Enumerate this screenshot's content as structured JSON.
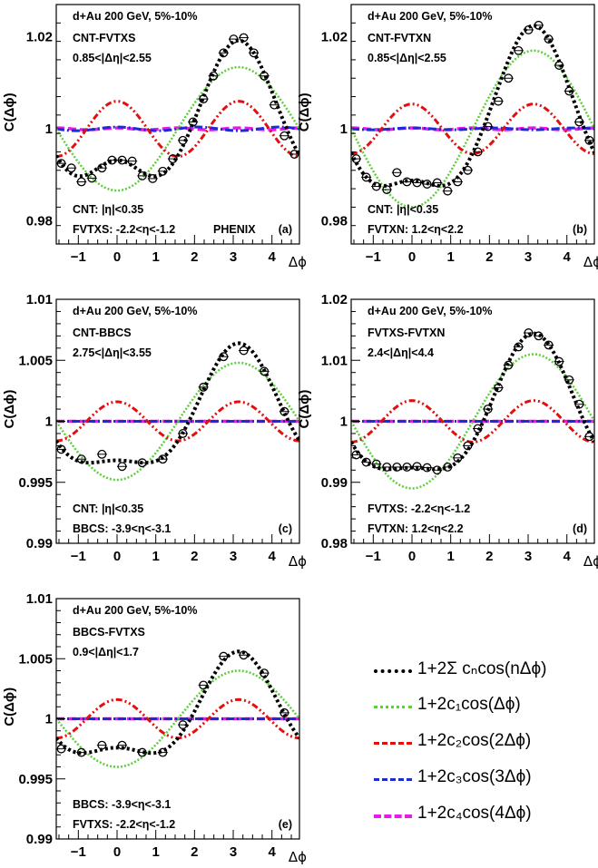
{
  "colors": {
    "fourier": "#000000",
    "c1": "#5ccf3b",
    "c2": "#e01010",
    "c3": "#1c2ad8",
    "c4": "#e81ae8"
  },
  "legend": [
    {
      "series": "fourier",
      "label": "1+2Σ cₙcos(nΔϕ)"
    },
    {
      "series": "c1",
      "label": "1+2c₁cos(Δϕ)"
    },
    {
      "series": "c2",
      "label": "1+2c₂cos(2Δϕ)"
    },
    {
      "series": "c3",
      "label": "1+2c₃cos(3Δϕ)"
    },
    {
      "series": "c4",
      "label": "1+2c₄cos(4Δϕ)"
    }
  ],
  "chart_data": [
    {
      "type": "scatter",
      "panel_tag": "(a)",
      "header": "d+Au 200 GeV, 5%-10%",
      "pair": "CNT-FVTXS",
      "eta_gap": "0.85<|Δη|<2.55",
      "notes": [
        "CNT: |η|<0.35",
        "FVTXS: -2.2<η<-1.2"
      ],
      "experiment": "PHENIX",
      "xlabel": "Δϕ",
      "ylabel": "C(Δϕ)",
      "xlim": [
        -1.57,
        4.71
      ],
      "ylim": [
        0.975,
        1.027
      ],
      "xticks": [
        "−1",
        "0",
        "1",
        "2",
        "3",
        "4"
      ],
      "yticks": [
        "0.98",
        "1",
        "1.02"
      ],
      "ytick_values": [
        0.98,
        1.0,
        1.02
      ],
      "coefficients": {
        "c1": 0.0067,
        "c2": 0.003,
        "c3": 0.0002,
        "c4": 0.0001
      },
      "x": [
        -1.44,
        -1.18,
        -0.92,
        -0.65,
        -0.39,
        -0.13,
        0.13,
        0.39,
        0.65,
        0.92,
        1.18,
        1.44,
        1.7,
        1.96,
        2.23,
        2.49,
        2.75,
        3.01,
        3.27,
        3.53,
        3.8,
        4.06,
        4.32,
        4.58
      ],
      "y": [
        0.9925,
        0.9915,
        0.9885,
        0.9893,
        0.9915,
        0.9932,
        0.9932,
        0.993,
        0.9898,
        0.9892,
        0.9908,
        0.9935,
        0.9975,
        1.0015,
        1.0065,
        1.0115,
        1.0165,
        1.0195,
        1.0198,
        1.0165,
        1.0115,
        1.0052,
        0.9985,
        0.9945
      ]
    },
    {
      "type": "scatter",
      "panel_tag": "(b)",
      "header": "d+Au 200 GeV, 5%-10%",
      "pair": "CNT-FVTXN",
      "eta_gap": "0.85<|Δη|<2.55",
      "notes": [
        "CNT: |η|<0.35",
        "FVTXN: 1.2<η<2.2"
      ],
      "xlabel": "Δϕ",
      "ylabel": "C(Δϕ)",
      "xlim": [
        -1.57,
        4.71
      ],
      "ylim": [
        0.975,
        1.027
      ],
      "xticks": [
        "−1",
        "0",
        "1",
        "2",
        "3",
        "4"
      ],
      "yticks": [
        "0.98",
        "1",
        "1.02"
      ],
      "ytick_values": [
        0.98,
        1.0,
        1.02
      ],
      "coefficients": {
        "c1": 0.0085,
        "c2": 0.0027,
        "c3": 0.0001,
        "c4": 0.0001
      },
      "x": [
        -1.44,
        -1.18,
        -0.92,
        -0.65,
        -0.39,
        -0.13,
        0.13,
        0.39,
        0.65,
        0.92,
        1.18,
        1.44,
        1.7,
        1.96,
        2.23,
        2.49,
        2.75,
        3.01,
        3.27,
        3.53,
        3.8,
        4.06,
        4.32,
        4.58
      ],
      "y": [
        0.9935,
        0.9895,
        0.9875,
        0.9868,
        0.9905,
        0.9885,
        0.9883,
        0.988,
        0.9883,
        0.9865,
        0.9885,
        0.991,
        0.995,
        1.0005,
        1.006,
        1.011,
        1.017,
        1.0215,
        1.0225,
        1.0195,
        1.0138,
        1.0082,
        1.0015,
        0.9975
      ]
    },
    {
      "type": "scatter",
      "panel_tag": "(c)",
      "header": "d+Au 200 GeV, 5%-10%",
      "pair": "CNT-BBCS",
      "eta_gap": "2.75<|Δη|<3.55",
      "notes": [
        "CNT: |η|<0.35",
        "BBCS: -3.9<η<-3.1"
      ],
      "xlabel": "Δϕ",
      "ylabel": "C(Δϕ)",
      "xlim": [
        -1.57,
        4.71
      ],
      "ylim": [
        0.99,
        1.01
      ],
      "xticks": [
        "−1",
        "0",
        "1",
        "2",
        "3",
        "4"
      ],
      "yticks": [
        "0.99",
        "0.995",
        "1",
        "1.005",
        "1.01"
      ],
      "ytick_values": [
        0.99,
        0.995,
        1.0,
        1.005,
        1.01
      ],
      "coefficients": {
        "c1": 0.0024,
        "c2": 0.0008,
        "c3": 0.0,
        "c4": 0.0
      },
      "x": [
        -1.44,
        -0.92,
        -0.39,
        0.13,
        0.65,
        1.18,
        1.7,
        2.23,
        2.75,
        3.27,
        3.8,
        4.32
      ],
      "y": [
        0.9977,
        0.9969,
        0.9973,
        0.9963,
        0.9966,
        0.9969,
        0.999,
        1.0028,
        1.0053,
        1.0058,
        1.0041,
        1.0008
      ]
    },
    {
      "type": "scatter",
      "panel_tag": "(d)",
      "header": "d+Au 200 GeV, 5%-10%",
      "pair": "FVTXS-FVTXN",
      "eta_gap": "2.4<|Δη|<4.4",
      "notes": [
        "FVTXS: -2.2<η<-1.2",
        "FVTXN: 1.2<η<2.2"
      ],
      "xlabel": "Δϕ",
      "ylabel": "C(Δϕ)",
      "xlim": [
        -1.57,
        4.71
      ],
      "ylim": [
        0.98,
        1.02
      ],
      "xticks": [
        "−1",
        "0",
        "1",
        "2",
        "3",
        "4"
      ],
      "yticks": [
        "0.98",
        "0.99",
        "1",
        "1.01",
        "1.02"
      ],
      "ytick_values": [
        0.98,
        0.99,
        1.0,
        1.01,
        1.02
      ],
      "coefficients": {
        "c1": 0.0055,
        "c2": 0.0017,
        "c3": 0.0,
        "c4": 0.0
      },
      "x": [
        -1.44,
        -1.18,
        -0.92,
        -0.65,
        -0.39,
        -0.13,
        0.13,
        0.39,
        0.65,
        0.92,
        1.18,
        1.44,
        1.7,
        1.96,
        2.23,
        2.49,
        2.75,
        3.01,
        3.27,
        3.53,
        3.8,
        4.06,
        4.32,
        4.58
      ],
      "y": [
        0.9945,
        0.9933,
        0.993,
        0.9925,
        0.9925,
        0.9925,
        0.9926,
        0.9924,
        0.992,
        0.9925,
        0.994,
        0.996,
        0.9988,
        1.002,
        1.0055,
        1.0092,
        1.0122,
        1.0145,
        1.014,
        1.0125,
        1.0098,
        1.0068,
        1.0028,
        0.9975
      ]
    },
    {
      "type": "scatter",
      "panel_tag": "(e)",
      "header": "d+Au 200 GeV, 5%-10%",
      "pair": "BBCS-FVTXS",
      "eta_gap": "0.9<|Δη|<1.7",
      "notes": [
        "BBCS: -3.9<η<-3.1",
        "FVTXS: -2.2<η<-1.2"
      ],
      "xlabel": "Δϕ",
      "ylabel": "C(Δϕ)",
      "xlim": [
        -1.57,
        4.71
      ],
      "ylim": [
        0.99,
        1.01
      ],
      "xticks": [
        "−1",
        "0",
        "1",
        "2",
        "3",
        "4"
      ],
      "yticks": [
        "0.99",
        "0.995",
        "1",
        "1.005",
        "1.01"
      ],
      "ytick_values": [
        0.99,
        0.995,
        1.0,
        1.005,
        1.01
      ],
      "coefficients": {
        "c1": 0.002,
        "c2": 0.0008,
        "c3": 0.0,
        "c4": 0.0
      },
      "x": [
        -1.44,
        -0.92,
        -0.39,
        0.13,
        0.65,
        1.18,
        1.7,
        2.23,
        2.75,
        3.27,
        3.8,
        4.32
      ],
      "y": [
        0.9975,
        0.9972,
        0.9978,
        0.9978,
        0.9972,
        0.9972,
        0.9995,
        1.0028,
        1.0052,
        1.0053,
        1.0038,
        1.0005
      ]
    }
  ]
}
